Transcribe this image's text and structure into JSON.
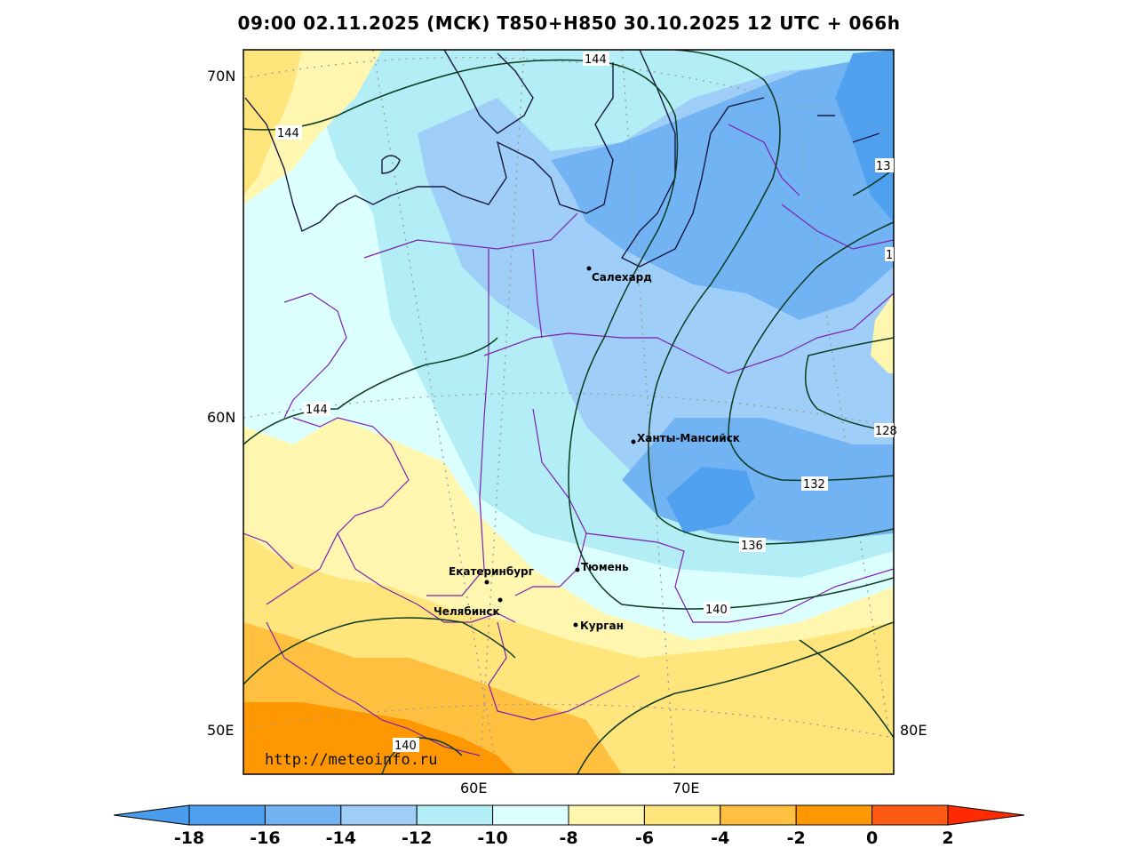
{
  "title": "09:00 02.11.2025 (МСК) T850+H850 30.10.2025 12 UTC + 066h",
  "lat_labels": [
    "70N",
    "60N",
    "50E"
  ],
  "lon_labels": [
    "60E",
    "70E",
    "80E"
  ],
  "watermark": "http://meteoinfo.ru",
  "cities": [
    {
      "name": "Салехард"
    },
    {
      "name": "Ханты-Мансийск"
    },
    {
      "name": "Екатеринбург"
    },
    {
      "name": "Тюмень"
    },
    {
      "name": "Челябинск"
    },
    {
      "name": "Курган"
    }
  ],
  "contour_labels": [
    "144",
    "144",
    "144",
    "136",
    "132",
    "128",
    "132",
    "136",
    "140",
    "140",
    "13",
    "1"
  ],
  "colorbar": {
    "ticks": [
      "-18",
      "-16",
      "-14",
      "-12",
      "-10",
      "-8",
      "-6",
      "-4",
      "-2",
      "0",
      "2"
    ],
    "colors": [
      "#4a9cee",
      "#4fa1f0",
      "#72b3f4",
      "#9fcff8",
      "#b3eef6",
      "#dcffff",
      "#fff7b0",
      "#ffe57c",
      "#ffc040",
      "#ff9800",
      "#ff5a14",
      "#ff2a00"
    ]
  }
}
